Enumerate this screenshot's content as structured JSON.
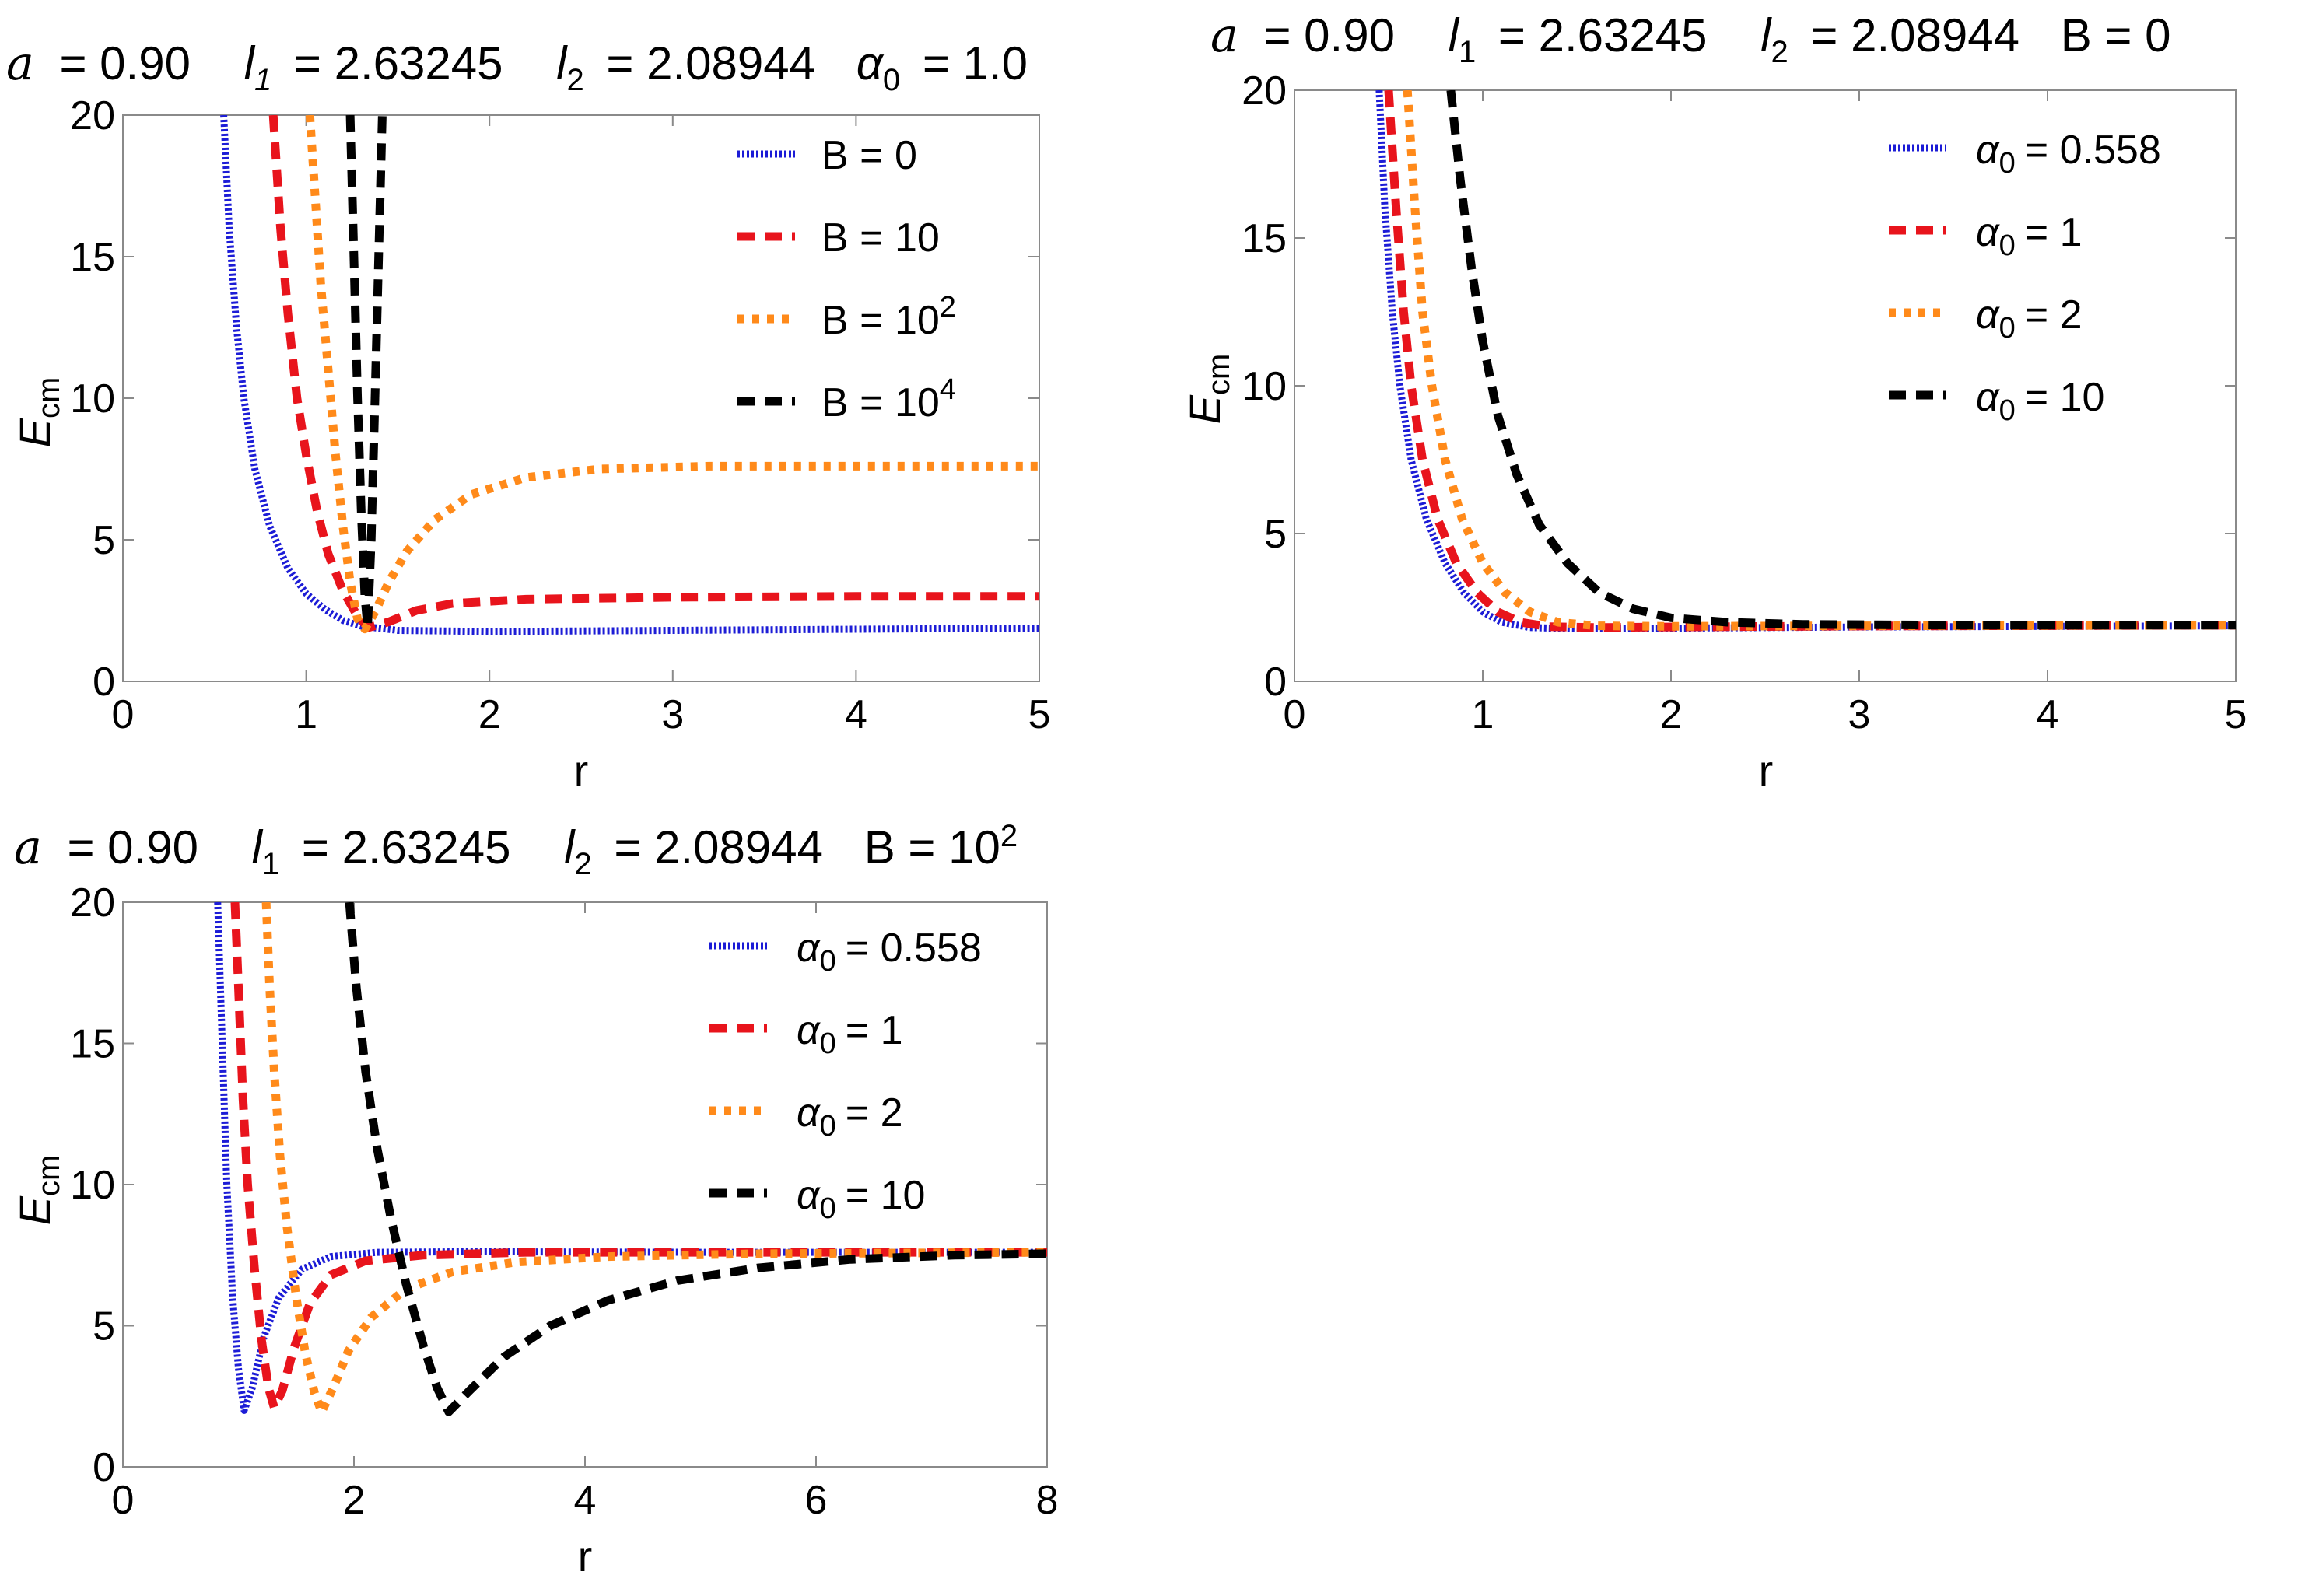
{
  "figure": {
    "colors": {
      "blue": "#1c1cd6",
      "red": "#e8141c",
      "orange": "#ff8a1a",
      "black": "#000000",
      "frame": "#8a8a8a"
    },
    "chart_data": [
      {
        "type": "line",
        "title_parts": {
          "a_sym": "a",
          "a_val": "= 0.90",
          "l1_sym": "l",
          "l1_sub": "1",
          "l1_val": "= 2.63245",
          "l2_sym": "l",
          "l2_sub": "2",
          "l2_val": "= 2.08944",
          "p_sym": "α",
          "p_sub": "0",
          "p_val": "= 1.0"
        },
        "xlabel": "r",
        "ylabel": "E",
        "ylabel_sub": "cm",
        "xlim": [
          0,
          5
        ],
        "ylim": [
          0,
          20
        ],
        "xticks": [
          0,
          1,
          2,
          3,
          4,
          5
        ],
        "yticks": [
          0,
          5,
          10,
          15,
          20
        ],
        "series": [
          {
            "name": "B = 0",
            "label_main": "B = 0",
            "label_sup": "",
            "color": "blue",
            "style": "fine",
            "points": [
              [
                0.55,
                20
              ],
              [
                0.58,
                16
              ],
              [
                0.62,
                12.5
              ],
              [
                0.66,
                10
              ],
              [
                0.72,
                7.5
              ],
              [
                0.8,
                5.5
              ],
              [
                0.9,
                4.0
              ],
              [
                1.0,
                3.1
              ],
              [
                1.1,
                2.55
              ],
              [
                1.2,
                2.15
              ],
              [
                1.3,
                1.95
              ],
              [
                1.5,
                1.8
              ],
              [
                2,
                1.76
              ],
              [
                3,
                1.8
              ],
              [
                4,
                1.84
              ],
              [
                5,
                1.88
              ]
            ]
          },
          {
            "name": "B = 10",
            "label_main": "B = 10",
            "label_sup": "",
            "color": "red",
            "style": "dash",
            "points": [
              [
                0.82,
                20
              ],
              [
                0.86,
                16
              ],
              [
                0.9,
                13
              ],
              [
                0.95,
                10
              ],
              [
                1.0,
                8.0
              ],
              [
                1.06,
                6.0
              ],
              [
                1.12,
                4.5
              ],
              [
                1.2,
                3.2
              ],
              [
                1.28,
                2.3
              ],
              [
                1.34,
                1.9
              ],
              [
                1.45,
                2.1
              ],
              [
                1.6,
                2.5
              ],
              [
                1.8,
                2.75
              ],
              [
                2.2,
                2.9
              ],
              [
                3,
                2.97
              ],
              [
                4,
                3.0
              ],
              [
                5,
                3.0
              ]
            ]
          },
          {
            "name": "B = 10^2",
            "label_main": "B = 10",
            "label_sup": "2",
            "color": "orange",
            "style": "dot",
            "points": [
              [
                1.02,
                20
              ],
              [
                1.05,
                17
              ],
              [
                1.08,
                14
              ],
              [
                1.12,
                11
              ],
              [
                1.16,
                8
              ],
              [
                1.2,
                5.5
              ],
              [
                1.24,
                3.5
              ],
              [
                1.28,
                2.2
              ],
              [
                1.32,
                1.85
              ],
              [
                1.38,
                2.5
              ],
              [
                1.45,
                3.5
              ],
              [
                1.55,
                4.6
              ],
              [
                1.7,
                5.7
              ],
              [
                1.9,
                6.6
              ],
              [
                2.2,
                7.2
              ],
              [
                2.6,
                7.5
              ],
              [
                3.2,
                7.6
              ],
              [
                4,
                7.6
              ],
              [
                5,
                7.6
              ]
            ]
          },
          {
            "name": "B = 10^4",
            "label_main": "B = 10",
            "label_sup": "4",
            "color": "black",
            "style": "dash",
            "points": [
              [
                1.24,
                20
              ],
              [
                1.26,
                15
              ],
              [
                1.28,
                10
              ],
              [
                1.3,
                6
              ],
              [
                1.32,
                3
              ],
              [
                1.335,
                1.9
              ],
              [
                1.355,
                5
              ],
              [
                1.375,
                10
              ],
              [
                1.395,
                15
              ],
              [
                1.415,
                20
              ]
            ]
          }
        ]
      },
      {
        "type": "line",
        "title_parts": {
          "a_sym": "a",
          "a_val": "= 0.90",
          "l1_sym": "l",
          "l1_sub": "1",
          "l1_val": "= 2.63245",
          "l2_sym": "l",
          "l2_sub": "2",
          "l2_val": "= 2.08944",
          "p_sym": "",
          "p_sub": "",
          "p_val": "B = 0"
        },
        "xlabel": "r",
        "ylabel": "E",
        "ylabel_sub": "cm",
        "xlim": [
          0,
          5
        ],
        "ylim": [
          0,
          20
        ],
        "xticks": [
          0,
          1,
          2,
          3,
          4,
          5
        ],
        "yticks": [
          0,
          5,
          10,
          15,
          20
        ],
        "series": [
          {
            "name": "α0 = 0.558",
            "label_main": "α",
            "label_sub": "0",
            "label_rest": "= 0.558",
            "color": "blue",
            "style": "fine",
            "points": [
              [
                0.45,
                20
              ],
              [
                0.48,
                16
              ],
              [
                0.52,
                12.5
              ],
              [
                0.56,
                10
              ],
              [
                0.62,
                7.5
              ],
              [
                0.7,
                5.5
              ],
              [
                0.8,
                4.0
              ],
              [
                0.9,
                3.0
              ],
              [
                1.0,
                2.35
              ],
              [
                1.1,
                2.0
              ],
              [
                1.25,
                1.82
              ],
              [
                1.5,
                1.78
              ],
              [
                2,
                1.8
              ],
              [
                3,
                1.84
              ],
              [
                4,
                1.86
              ],
              [
                5,
                1.88
              ]
            ]
          },
          {
            "name": "α0 = 1",
            "label_main": "α",
            "label_sub": "0",
            "label_rest": "= 1",
            "color": "red",
            "style": "dash",
            "points": [
              [
                0.5,
                20
              ],
              [
                0.54,
                16
              ],
              [
                0.58,
                12.5
              ],
              [
                0.62,
                10
              ],
              [
                0.68,
                7.5
              ],
              [
                0.76,
                5.5
              ],
              [
                0.86,
                4.0
              ],
              [
                0.97,
                3.0
              ],
              [
                1.08,
                2.35
              ],
              [
                1.2,
                2.0
              ],
              [
                1.35,
                1.85
              ],
              [
                1.6,
                1.82
              ],
              [
                2,
                1.84
              ],
              [
                3,
                1.87
              ],
              [
                5,
                1.9
              ]
            ]
          },
          {
            "name": "α0 = 2",
            "label_main": "α",
            "label_sub": "0",
            "label_rest": "= 2",
            "color": "orange",
            "style": "dot",
            "points": [
              [
                0.6,
                20
              ],
              [
                0.64,
                16
              ],
              [
                0.68,
                12.5
              ],
              [
                0.73,
                10
              ],
              [
                0.8,
                7.5
              ],
              [
                0.89,
                5.5
              ],
              [
                1.0,
                4.0
              ],
              [
                1.12,
                3.0
              ],
              [
                1.25,
                2.35
              ],
              [
                1.4,
                2.0
              ],
              [
                1.6,
                1.88
              ],
              [
                2,
                1.86
              ],
              [
                3,
                1.88
              ],
              [
                5,
                1.9
              ]
            ]
          },
          {
            "name": "α0 = 10",
            "label_main": "α",
            "label_sub": "0",
            "label_rest": "= 10",
            "color": "black",
            "style": "dash",
            "points": [
              [
                0.83,
                20
              ],
              [
                0.88,
                17
              ],
              [
                0.94,
                14
              ],
              [
                1.0,
                11.5
              ],
              [
                1.08,
                9.0
              ],
              [
                1.18,
                7.0
              ],
              [
                1.3,
                5.3
              ],
              [
                1.45,
                4.0
              ],
              [
                1.62,
                3.0
              ],
              [
                1.8,
                2.45
              ],
              [
                2.0,
                2.15
              ],
              [
                2.3,
                2.0
              ],
              [
                2.7,
                1.93
              ],
              [
                3.5,
                1.9
              ],
              [
                5,
                1.9
              ]
            ]
          }
        ]
      },
      {
        "type": "line",
        "title_parts": {
          "a_sym": "a",
          "a_val": "= 0.90",
          "l1_sym": "l",
          "l1_sub": "1",
          "l1_val": "= 2.63245",
          "l2_sym": "l",
          "l2_sub": "2",
          "l2_val": "= 2.08944",
          "p_sym": "",
          "p_sub": "",
          "p_val": "B = 10",
          "p_sup": "2"
        },
        "xlabel": "r",
        "ylabel": "E",
        "ylabel_sub": "cm",
        "xlim": [
          0,
          8
        ],
        "ylim": [
          0,
          20
        ],
        "xticks": [
          0,
          2,
          4,
          6,
          8
        ],
        "yticks": [
          0,
          5,
          10,
          15,
          20
        ],
        "series": [
          {
            "name": "α0 = 0.558",
            "label_main": "α",
            "label_sub": "0",
            "label_rest": "= 0.558",
            "color": "blue",
            "style": "fine",
            "points": [
              [
                0.82,
                20
              ],
              [
                0.86,
                15
              ],
              [
                0.9,
                10
              ],
              [
                0.95,
                6
              ],
              [
                1.0,
                3.5
              ],
              [
                1.05,
                2.0
              ],
              [
                1.12,
                2.8
              ],
              [
                1.22,
                4.6
              ],
              [
                1.35,
                6.0
              ],
              [
                1.55,
                7.0
              ],
              [
                1.8,
                7.45
              ],
              [
                2.2,
                7.6
              ],
              [
                3,
                7.62
              ],
              [
                5,
                7.6
              ],
              [
                8,
                7.6
              ]
            ]
          },
          {
            "name": "α0 = 1",
            "label_main": "α",
            "label_sub": "0",
            "label_rest": "= 1",
            "color": "red",
            "style": "dash",
            "points": [
              [
                0.97,
                20
              ],
              [
                1.0,
                17
              ],
              [
                1.04,
                13
              ],
              [
                1.08,
                10
              ],
              [
                1.14,
                7
              ],
              [
                1.2,
                4.5
              ],
              [
                1.26,
                2.8
              ],
              [
                1.31,
                2.1
              ],
              [
                1.38,
                2.7
              ],
              [
                1.48,
                4.2
              ],
              [
                1.62,
                5.8
              ],
              [
                1.8,
                6.8
              ],
              [
                2.1,
                7.3
              ],
              [
                2.6,
                7.5
              ],
              [
                3.5,
                7.6
              ],
              [
                8,
                7.6
              ]
            ]
          },
          {
            "name": "α0 = 2",
            "label_main": "α",
            "label_sub": "0",
            "label_rest": "= 2",
            "color": "orange",
            "style": "dot",
            "points": [
              [
                1.24,
                20
              ],
              [
                1.27,
                17
              ],
              [
                1.31,
                14
              ],
              [
                1.36,
                11
              ],
              [
                1.42,
                8.5
              ],
              [
                1.5,
                6.0
              ],
              [
                1.58,
                4.0
              ],
              [
                1.66,
                2.6
              ],
              [
                1.72,
                1.95
              ],
              [
                1.82,
                2.8
              ],
              [
                1.95,
                4.1
              ],
              [
                2.15,
                5.3
              ],
              [
                2.45,
                6.3
              ],
              [
                2.85,
                6.9
              ],
              [
                3.4,
                7.25
              ],
              [
                4.2,
                7.45
              ],
              [
                5.5,
                7.55
              ],
              [
                8,
                7.6
              ]
            ]
          },
          {
            "name": "α0 = 10",
            "label_main": "α",
            "label_sub": "0",
            "label_rest": "= 10",
            "color": "black",
            "style": "dash",
            "points": [
              [
                1.96,
                20
              ],
              [
                2.02,
                17
              ],
              [
                2.1,
                14
              ],
              [
                2.2,
                11.3
              ],
              [
                2.32,
                8.8
              ],
              [
                2.45,
                6.5
              ],
              [
                2.6,
                4.3
              ],
              [
                2.72,
                2.8
              ],
              [
                2.82,
                1.95
              ],
              [
                3.0,
                2.7
              ],
              [
                3.3,
                3.9
              ],
              [
                3.7,
                5.0
              ],
              [
                4.2,
                5.9
              ],
              [
                4.8,
                6.6
              ],
              [
                5.5,
                7.05
              ],
              [
                6.3,
                7.35
              ],
              [
                7.2,
                7.5
              ],
              [
                8,
                7.55
              ]
            ]
          }
        ]
      }
    ]
  }
}
